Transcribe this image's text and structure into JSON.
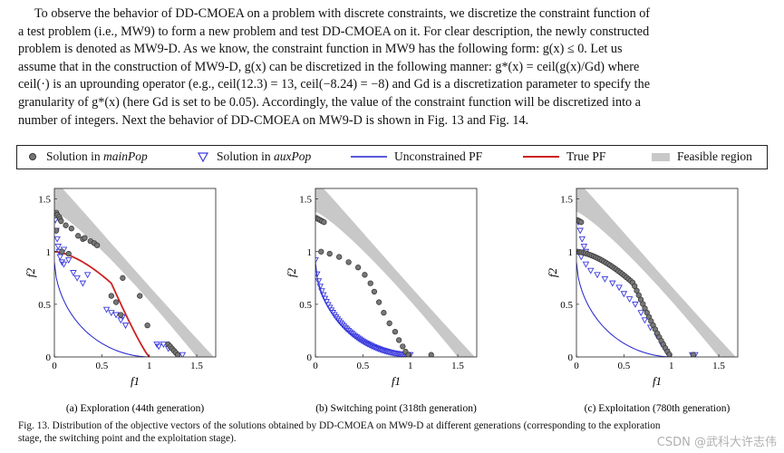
{
  "paragraph": {
    "line1": "To observe the behavior of DD-CMOEA on a problem with discrete constraints, we discretize the constraint function of",
    "line2": "a test problem (i.e., MW9) to form a new problem and test DD-CMOEA on it. For clear description, the newly constructed",
    "line3": "problem is denoted as MW9-D. As we know, the constraint function in MW9 has the following form: g(x) ≤ 0. Let us",
    "line4": "assume that in the construction of MW9-D, g(x) can be discretized in the following manner: g*(x) = ceil(g(x)/Gd) where",
    "line5": "ceil(·) is an uprounding operator (e.g., ceil(12.3) = 13, ceil(−8.24) = −8) and Gd is a discretization parameter to specify the",
    "line6": "granularity of g*(x) (here Gd is set to be 0.05). Accordingly, the value of the constraint function will be discretized into a",
    "line7": "number of integers. Next the behavior of DD-CMOEA on MW9-D is shown in Fig. 13 and Fig. 14."
  },
  "legend": {
    "main_prefix": "Solution in ",
    "main_name": "mainPop",
    "aux_prefix": "Solution in ",
    "aux_name": "auxPop",
    "unconstrained": "Unconstrained PF",
    "true_pf": "True PF",
    "feasible": "Feasible region"
  },
  "colors": {
    "main_marker": "#777777",
    "aux_marker": "#3a3adf",
    "unconstrained_pf": "#2222cc",
    "true_pf": "#cc2222",
    "feasible": "#c8c8c8"
  },
  "chart_data": [
    {
      "type": "scatter",
      "caption": "(a) Exploration (44th generation)",
      "xlabel": "f1",
      "ylabel": "f2",
      "xlim": [
        0,
        1.7
      ],
      "ylim": [
        0,
        1.6
      ],
      "xticks": [
        "0",
        "0.5",
        "1",
        "1.5"
      ],
      "yticks": [
        "0",
        "0.5",
        "1",
        "1.5"
      ],
      "mainPop": [
        [
          0.02,
          1.37
        ],
        [
          0.03,
          1.35
        ],
        [
          0.05,
          1.33
        ],
        [
          0.06,
          1.31
        ],
        [
          0.07,
          1.29
        ],
        [
          0.12,
          1.25
        ],
        [
          0.18,
          1.22
        ],
        [
          0.25,
          1.15
        ],
        [
          0.3,
          1.12
        ],
        [
          0.32,
          1.13
        ],
        [
          0.38,
          1.1
        ],
        [
          0.42,
          1.08
        ],
        [
          0.45,
          1.06
        ],
        [
          0.6,
          0.58
        ],
        [
          0.65,
          0.52
        ],
        [
          0.7,
          0.4
        ],
        [
          0.72,
          0.75
        ],
        [
          0.9,
          0.58
        ],
        [
          0.98,
          0.3
        ],
        [
          1.2,
          0.12
        ],
        [
          1.22,
          0.1
        ],
        [
          1.24,
          0.08
        ],
        [
          1.26,
          0.06
        ],
        [
          1.28,
          0.04
        ],
        [
          1.3,
          0.02
        ],
        [
          0.02,
          1.2
        ],
        [
          0.08,
          1.0
        ],
        [
          0.15,
          0.98
        ]
      ],
      "auxPop": [
        [
          0.01,
          1.3
        ],
        [
          0.02,
          1.2
        ],
        [
          0.03,
          1.12
        ],
        [
          0.04,
          1.05
        ],
        [
          0.05,
          1.0
        ],
        [
          0.06,
          0.95
        ],
        [
          0.08,
          0.9
        ],
        [
          0.1,
          0.88
        ],
        [
          0.2,
          0.8
        ],
        [
          0.24,
          0.75
        ],
        [
          0.3,
          0.7
        ],
        [
          0.35,
          0.78
        ],
        [
          0.1,
          1.02
        ],
        [
          0.15,
          0.92
        ],
        [
          0.55,
          0.45
        ],
        [
          0.6,
          0.42
        ],
        [
          0.65,
          0.4
        ],
        [
          0.7,
          0.35
        ],
        [
          0.75,
          0.3
        ],
        [
          0.72,
          0.38
        ],
        [
          1.08,
          0.12
        ],
        [
          1.1,
          0.1
        ],
        [
          1.15,
          0.12
        ],
        [
          1.2,
          0.08
        ],
        [
          1.35,
          0.02
        ]
      ]
    },
    {
      "type": "scatter",
      "caption": "(b) Switching point (318th generation)",
      "xlabel": "f1",
      "ylabel": "f2",
      "xlim": [
        0,
        1.7
      ],
      "ylim": [
        0,
        1.6
      ],
      "xticks": [
        "0",
        "0.5",
        "1",
        "1.5"
      ],
      "yticks": [
        "0",
        "0.5",
        "1",
        "1.5"
      ],
      "mainPop": [
        [
          0.01,
          1.32
        ],
        [
          0.03,
          1.31
        ],
        [
          0.05,
          1.3
        ],
        [
          0.07,
          1.29
        ],
        [
          0.09,
          1.28
        ],
        [
          0.06,
          1.0
        ],
        [
          0.15,
          0.98
        ],
        [
          0.25,
          0.95
        ],
        [
          0.35,
          0.9
        ],
        [
          0.45,
          0.85
        ],
        [
          0.52,
          0.78
        ],
        [
          0.58,
          0.7
        ],
        [
          0.62,
          0.62
        ],
        [
          0.67,
          0.52
        ],
        [
          0.72,
          0.42
        ],
        [
          0.78,
          0.32
        ],
        [
          0.84,
          0.24
        ],
        [
          0.88,
          0.16
        ],
        [
          0.92,
          0.1
        ],
        [
          0.95,
          0.05
        ],
        [
          0.98,
          0.02
        ],
        [
          1.22,
          0.02
        ]
      ],
      "auxPop": "pf"
    },
    {
      "type": "scatter",
      "caption": "(c) Exploitation (780th generation)",
      "xlabel": "f1",
      "ylabel": "f2",
      "xlim": [
        0,
        1.7
      ],
      "ylim": [
        0,
        1.6
      ],
      "xticks": [
        "0",
        "0.5",
        "1",
        "1.5"
      ],
      "yticks": [
        "0",
        "0.5",
        "1",
        "1.5"
      ],
      "mainPop": "truepf",
      "auxPop": [
        [
          0.02,
          1.28
        ],
        [
          0.04,
          1.2
        ],
        [
          0.06,
          1.12
        ],
        [
          0.08,
          1.05
        ],
        [
          0.1,
          1.0
        ],
        [
          0.05,
          0.95
        ],
        [
          0.1,
          0.88
        ],
        [
          0.15,
          0.82
        ],
        [
          0.22,
          0.78
        ],
        [
          0.3,
          0.74
        ],
        [
          0.38,
          0.7
        ],
        [
          0.45,
          0.66
        ],
        [
          0.5,
          0.6
        ],
        [
          0.56,
          0.55
        ],
        [
          0.62,
          0.5
        ],
        [
          0.68,
          0.42
        ],
        [
          0.72,
          0.35
        ],
        [
          0.78,
          0.28
        ],
        [
          0.85,
          0.2
        ],
        [
          0.9,
          0.12
        ],
        [
          0.95,
          0.05
        ],
        [
          1.22,
          0.02
        ],
        [
          1.25,
          0.02
        ]
      ]
    }
  ],
  "figure_caption": {
    "line1": "Fig. 13.   Distribution of the objective vectors of the solutions obtained by DD-CMOEA on MW9-D at different generations (corresponding to the exploration",
    "line2": "stage, the switching point and the exploitation stage)."
  },
  "watermark": "CSDN @武科大许志伟"
}
